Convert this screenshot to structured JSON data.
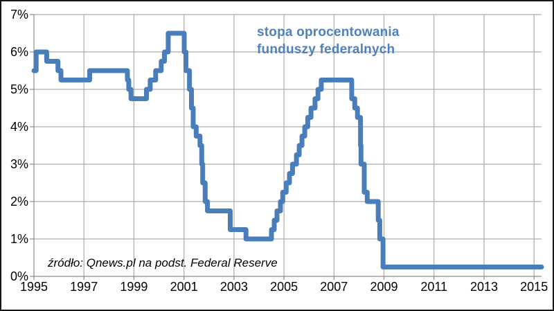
{
  "chart_data": {
    "type": "line",
    "title": "stopa oprocentowania funduszy federalnych",
    "title_lines": [
      "stopa oprocentowania",
      "funduszy federalnych"
    ],
    "source": "źródło: Qnews.pl na podst. Federal Reserve",
    "xlim": [
      1995,
      2015.3
    ],
    "ylim": [
      0,
      7
    ],
    "grid": true,
    "legend": false,
    "x_ticks": [
      {
        "value": 1995,
        "label": "1995"
      },
      {
        "value": 1997,
        "label": "1997"
      },
      {
        "value": 1999,
        "label": "1999"
      },
      {
        "value": 2001,
        "label": "2001"
      },
      {
        "value": 2003,
        "label": "2003"
      },
      {
        "value": 2005,
        "label": "2005"
      },
      {
        "value": 2007,
        "label": "2007"
      },
      {
        "value": 2009,
        "label": "2009"
      },
      {
        "value": 2011,
        "label": "2011"
      },
      {
        "value": 2013,
        "label": "2013"
      },
      {
        "value": 2015,
        "label": "2015"
      }
    ],
    "y_ticks": [
      {
        "value": 0,
        "label": "0%"
      },
      {
        "value": 1,
        "label": "1%"
      },
      {
        "value": 2,
        "label": "2%"
      },
      {
        "value": 3,
        "label": "3%"
      },
      {
        "value": 4,
        "label": "4%"
      },
      {
        "value": 5,
        "label": "5%"
      },
      {
        "value": 6,
        "label": "6%"
      },
      {
        "value": 7,
        "label": "7%"
      }
    ],
    "series": [
      {
        "name": "stopa oprocentowania funduszy federalnych",
        "step": true,
        "stroke_width": 7,
        "points": [
          [
            1995.0,
            5.5
          ],
          [
            1995.09,
            6.0
          ],
          [
            1995.51,
            5.75
          ],
          [
            1995.96,
            5.5
          ],
          [
            1996.08,
            5.25
          ],
          [
            1997.23,
            5.5
          ],
          [
            1998.74,
            5.25
          ],
          [
            1998.79,
            5.0
          ],
          [
            1998.88,
            4.75
          ],
          [
            1999.5,
            5.0
          ],
          [
            1999.65,
            5.25
          ],
          [
            1999.87,
            5.5
          ],
          [
            2000.09,
            5.75
          ],
          [
            2000.22,
            6.0
          ],
          [
            2000.37,
            6.5
          ],
          [
            2001.01,
            6.0
          ],
          [
            2001.08,
            5.5
          ],
          [
            2001.22,
            5.0
          ],
          [
            2001.3,
            4.5
          ],
          [
            2001.37,
            4.0
          ],
          [
            2001.49,
            3.75
          ],
          [
            2001.64,
            3.5
          ],
          [
            2001.71,
            3.0
          ],
          [
            2001.75,
            2.5
          ],
          [
            2001.85,
            2.0
          ],
          [
            2001.94,
            1.75
          ],
          [
            2002.85,
            1.25
          ],
          [
            2003.48,
            1.0
          ],
          [
            2004.5,
            1.25
          ],
          [
            2004.61,
            1.5
          ],
          [
            2004.72,
            1.75
          ],
          [
            2004.86,
            2.0
          ],
          [
            2004.95,
            2.25
          ],
          [
            2005.09,
            2.5
          ],
          [
            2005.22,
            2.75
          ],
          [
            2005.34,
            3.0
          ],
          [
            2005.5,
            3.25
          ],
          [
            2005.61,
            3.5
          ],
          [
            2005.72,
            3.75
          ],
          [
            2005.83,
            4.0
          ],
          [
            2005.95,
            4.25
          ],
          [
            2006.08,
            4.5
          ],
          [
            2006.24,
            4.75
          ],
          [
            2006.36,
            5.0
          ],
          [
            2006.49,
            5.25
          ],
          [
            2007.71,
            4.75
          ],
          [
            2007.83,
            4.5
          ],
          [
            2007.94,
            4.25
          ],
          [
            2008.06,
            3.5
          ],
          [
            2008.08,
            3.0
          ],
          [
            2008.21,
            2.25
          ],
          [
            2008.33,
            2.0
          ],
          [
            2008.77,
            1.5
          ],
          [
            2008.83,
            1.0
          ],
          [
            2008.96,
            0.25
          ],
          [
            2015.3,
            0.25
          ]
        ]
      }
    ],
    "colors": {
      "line": "#4A7EBB",
      "title": "#4F81BD",
      "gridline": "#ACACAC",
      "axis": "#8C8C8C",
      "text": "#000000",
      "border": "#161616",
      "background": "#FFFFFF"
    }
  }
}
